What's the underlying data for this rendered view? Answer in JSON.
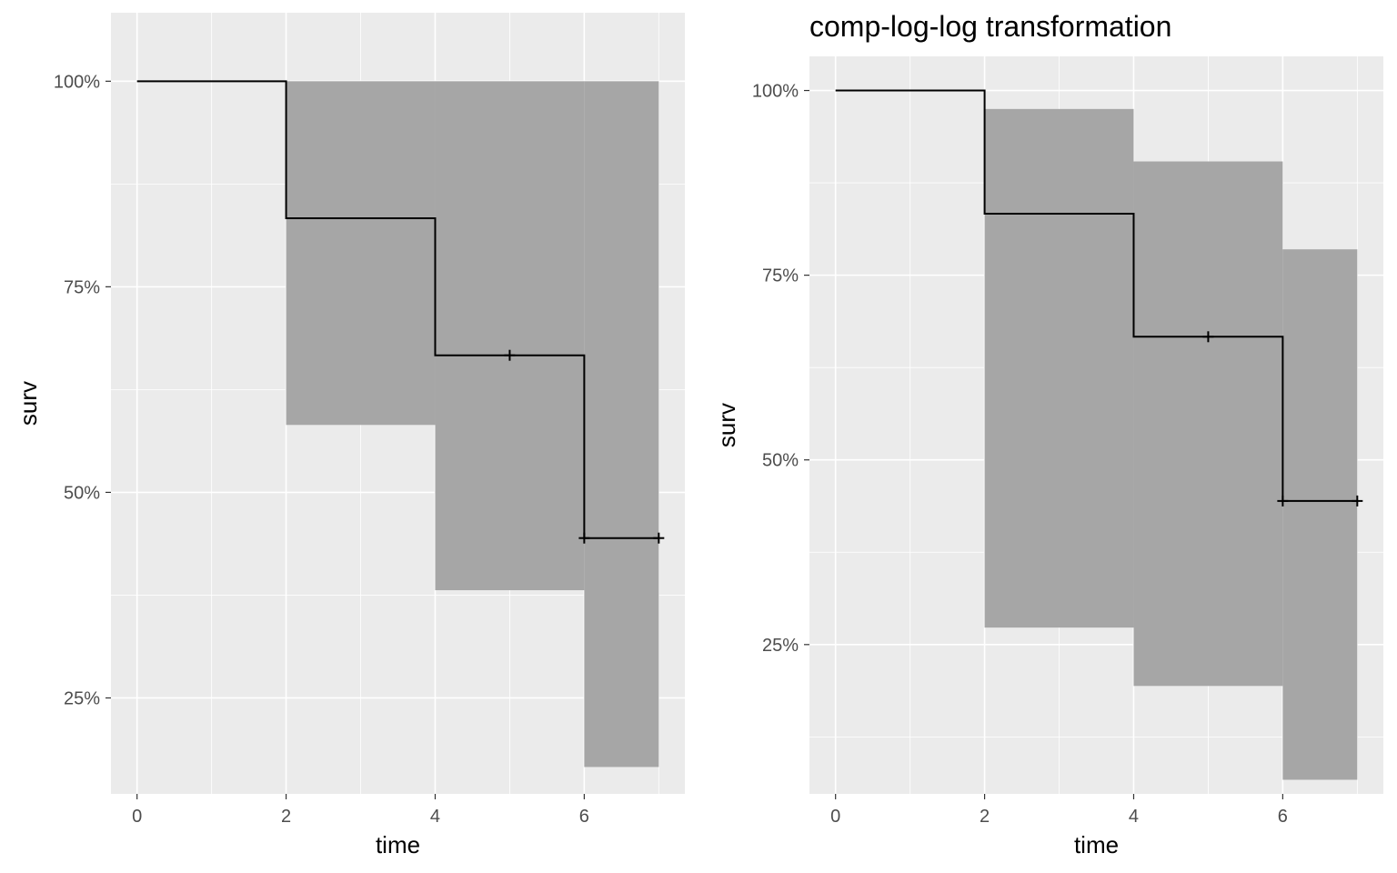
{
  "chart_data": [
    {
      "type": "line",
      "step": true,
      "title": "",
      "xlabel": "time",
      "ylabel": "surv",
      "xlim": [
        -0.35,
        7.35
      ],
      "ylim": [
        0.1333,
        1.0833
      ],
      "x_ticks": [
        0,
        2,
        4,
        6
      ],
      "x_tick_labels": [
        "0",
        "2",
        "4",
        "6"
      ],
      "y_ticks": [
        0.25,
        0.5,
        0.75,
        1.0
      ],
      "y_tick_labels": [
        "25%",
        "50%",
        "75%",
        "100%"
      ],
      "grid": true,
      "colors": {
        "panel": "#ebebeb",
        "band": "#a6a6a6",
        "line": "#000000"
      },
      "series": [
        {
          "x": [
            0,
            2,
            4,
            6,
            7
          ],
          "surv": [
            1.0,
            0.8333,
            0.6667,
            0.4444,
            0.4444
          ],
          "lower": [
            1.0,
            0.582,
            0.381,
            0.166,
            0.166
          ],
          "upper": [
            1.0,
            1.0,
            1.0,
            1.0,
            1.0
          ],
          "censor_x": [
            5,
            6,
            7
          ],
          "censor_y": [
            0.6667,
            0.4444,
            0.4444
          ]
        }
      ]
    },
    {
      "type": "line",
      "step": true,
      "title": "comp-log-log transformation",
      "xlabel": "time",
      "ylabel": "surv",
      "xlim": [
        -0.35,
        7.35
      ],
      "ylim": [
        0.0479,
        1.0462
      ],
      "x_ticks": [
        0,
        2,
        4,
        6
      ],
      "x_tick_labels": [
        "0",
        "2",
        "4",
        "6"
      ],
      "y_ticks": [
        0.25,
        0.5,
        0.75,
        1.0
      ],
      "y_tick_labels": [
        "25%",
        "50%",
        "75%",
        "100%"
      ],
      "grid": true,
      "colors": {
        "panel": "#ebebeb",
        "band": "#a6a6a6",
        "line": "#000000"
      },
      "series": [
        {
          "x": [
            0,
            2,
            4,
            6,
            7
          ],
          "surv": [
            1.0,
            0.8333,
            0.6667,
            0.4444,
            0.4444
          ],
          "lower": [
            1.0,
            0.273,
            0.194,
            0.067,
            0.067
          ],
          "upper": [
            1.0,
            0.975,
            0.904,
            0.785,
            0.785
          ],
          "censor_x": [
            5,
            6,
            7
          ],
          "censor_y": [
            0.6667,
            0.4444,
            0.4444
          ]
        }
      ]
    }
  ]
}
